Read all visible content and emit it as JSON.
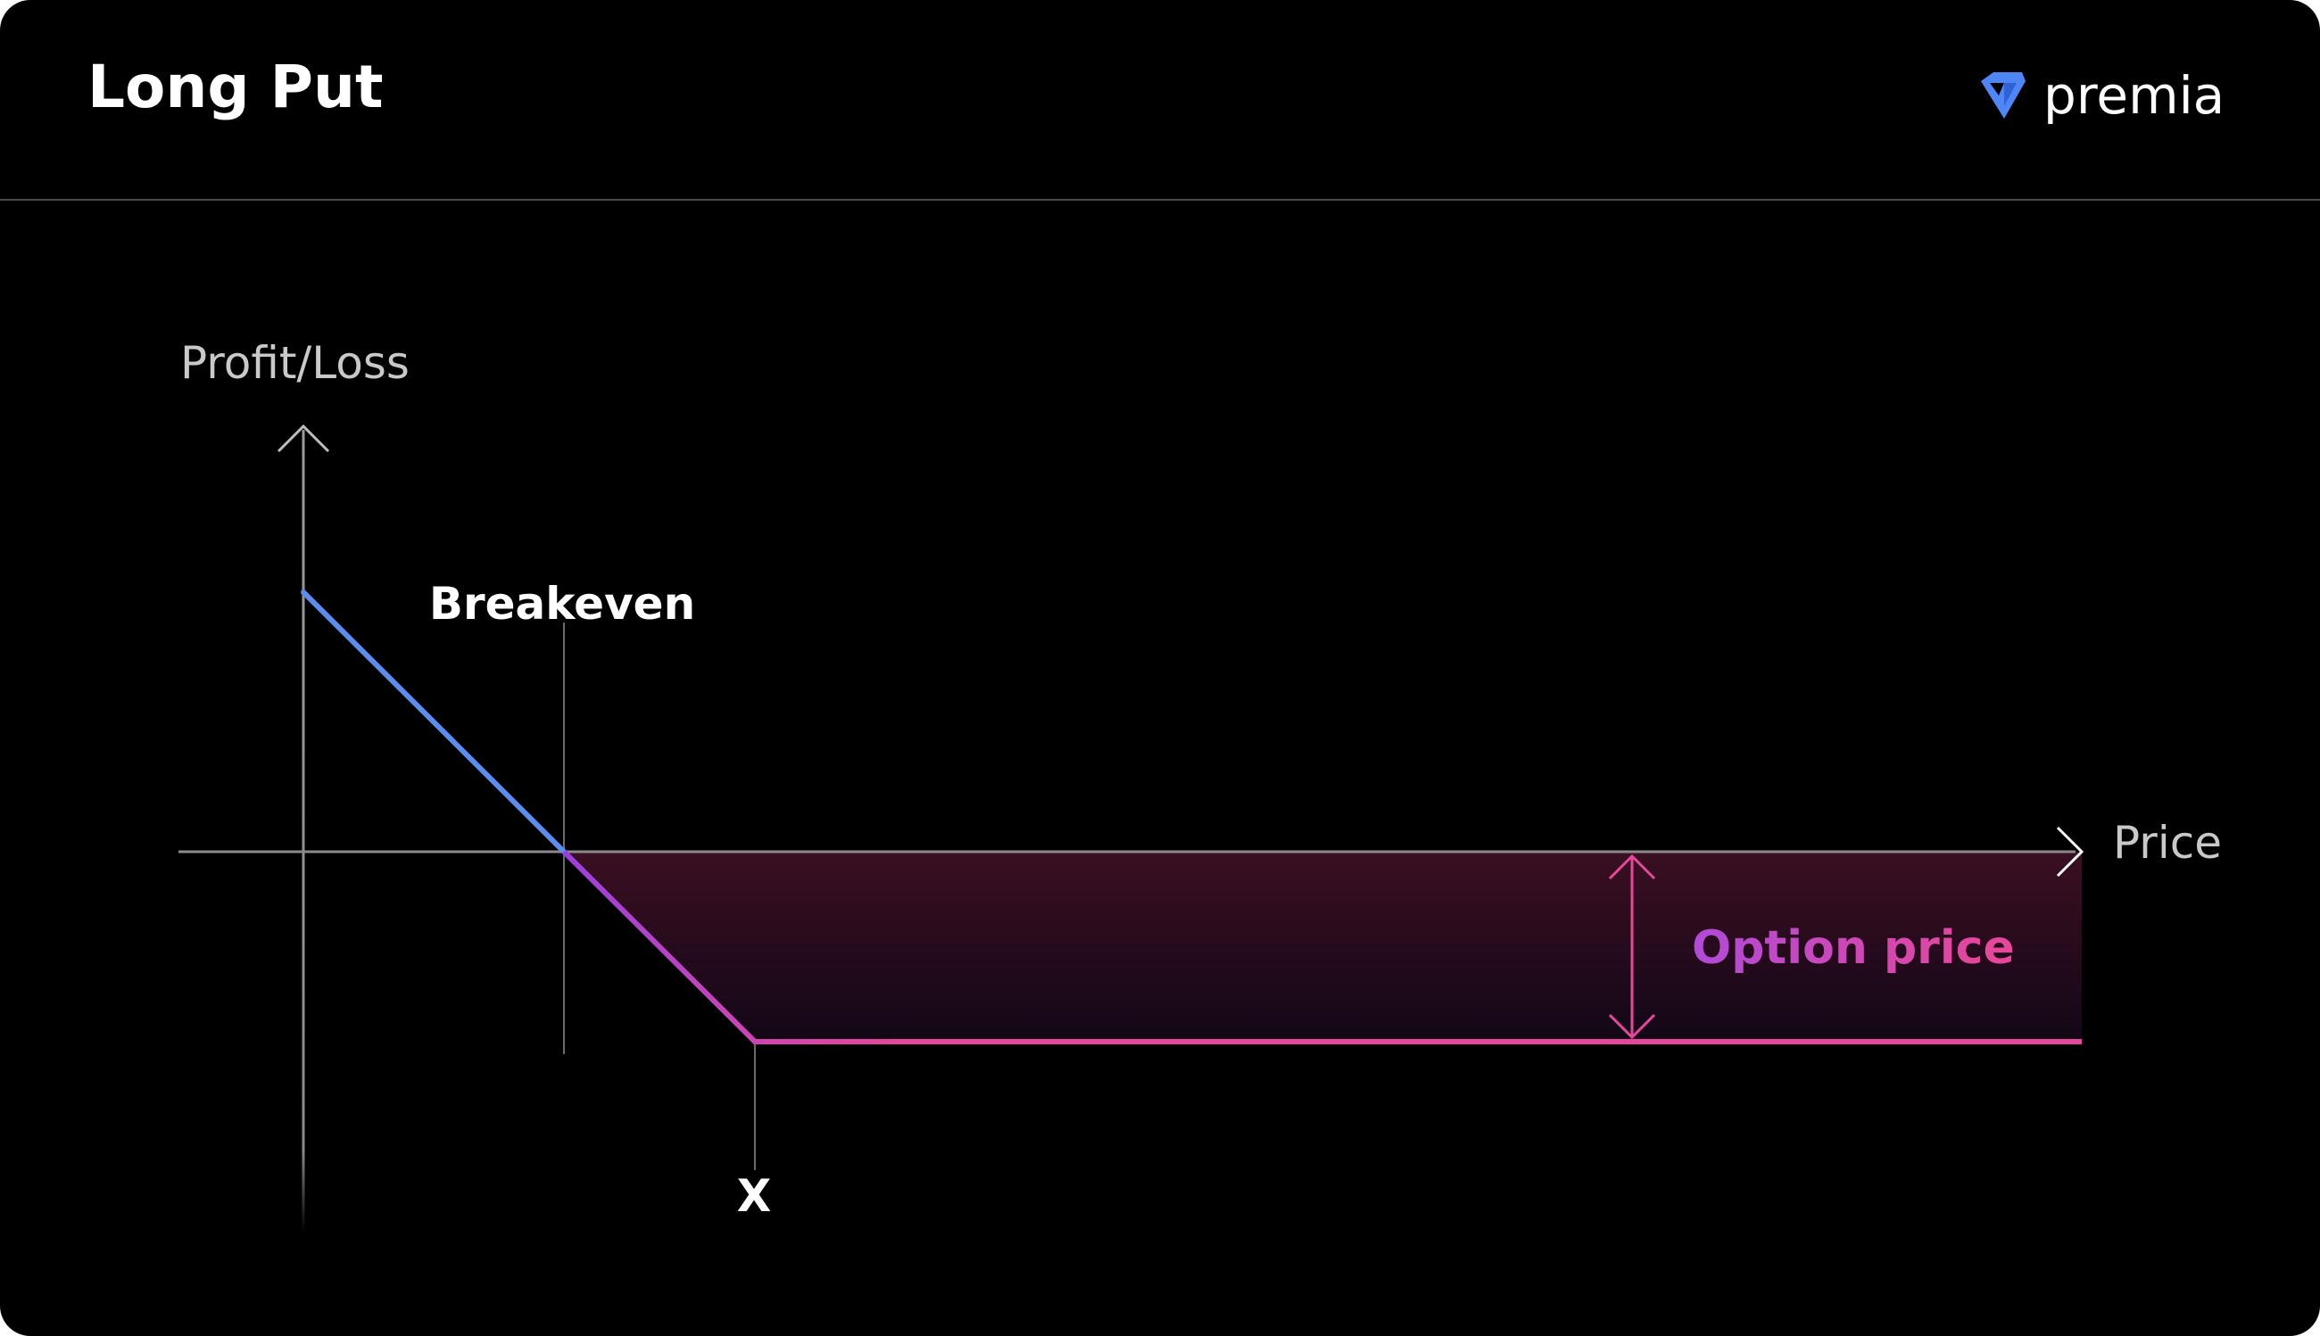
{
  "header": {
    "title": "Long Put",
    "brand": "premia",
    "brand_icon": "premia-logo-icon"
  },
  "diagram": {
    "y_axis_label": "Profit/Loss",
    "x_axis_label": "Price",
    "breakeven_label": "Breakeven",
    "strike_label": "X",
    "premium_label": "Option price"
  },
  "colors": {
    "background": "#000000",
    "axis": "#8a8a8a",
    "profit_line": "#5b8def",
    "loss_line_start": "#9b3fe0",
    "loss_line_end": "#e5479a",
    "premium_arrow": "#e5479a",
    "premium_label_start": "#b04ad8",
    "premium_label_end": "#e5479a",
    "loss_fill": "#2a0d1e",
    "logo_blue": "#4f86f7"
  }
}
